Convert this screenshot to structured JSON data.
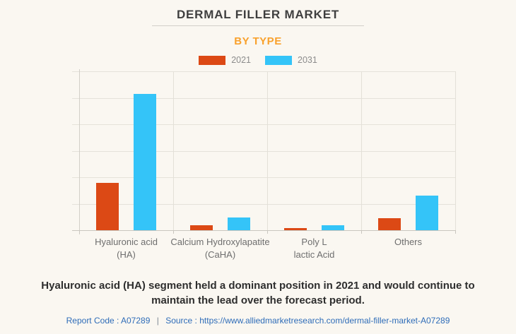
{
  "header": {
    "title": "DERMAL FILLER MARKET",
    "subtitle": "BY TYPE"
  },
  "colors": {
    "background": "#faf7f1",
    "series_2021": "#dc4915",
    "series_2031": "#34c4f8",
    "subtitle_orange": "#f9a12c",
    "link_blue": "#2e6cb8"
  },
  "chart_data": {
    "type": "bar",
    "title": "DERMAL FILLER MARKET",
    "subtitle": "BY TYPE",
    "categories": [
      "Hyaluronic acid (HA)",
      "Calcium Hydroxylapatite (CaHA)",
      "Poly L lactic Acid",
      "Others"
    ],
    "category_label_lines": [
      [
        "Hyaluronic acid",
        "(HA)"
      ],
      [
        "Calcium Hydroxylapatite",
        "(CaHA)"
      ],
      [
        "Poly L",
        "lactic Acid"
      ],
      [
        "Others"
      ]
    ],
    "series": [
      {
        "name": "2021",
        "color": "#dc4915",
        "values": [
          30,
          3,
          1.5,
          7.5
        ]
      },
      {
        "name": "2031",
        "color": "#34c4f8",
        "values": [
          86,
          8,
          3,
          22
        ]
      }
    ],
    "ylim": [
      0,
      100
    ],
    "y_axis_labels_shown": false,
    "horizontal_gridline_count": 7,
    "grid": true,
    "legend_position": "top",
    "units": "relative market size (no numeric axis labels shown)"
  },
  "footer": {
    "headline": "Hyaluronic acid (HA) segment held a dominant position in 2021 and would continue to maintain the lead over the forecast period.",
    "report_code": "Report Code : A07289",
    "separator": "|",
    "source_label": "Source :",
    "source_url": "https://www.alliedmarketresearch.com/dermal-filler-market-A07289"
  }
}
